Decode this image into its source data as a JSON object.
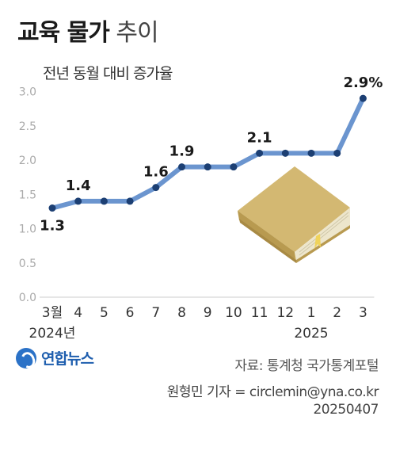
{
  "header": {
    "title_bold": "교육 물가",
    "title_light": "추이",
    "subtitle": "전년 동월 대비 증가율"
  },
  "chart_data": {
    "type": "line",
    "title": "교육 물가 추이",
    "ylabel": "전년 동월 대비 증가율",
    "categories": [
      "3월",
      "4",
      "5",
      "6",
      "7",
      "8",
      "9",
      "10",
      "11",
      "12",
      "1",
      "2",
      "3"
    ],
    "year_labels": [
      {
        "index": 0,
        "text": "2024년"
      },
      {
        "index": 10,
        "text": "2025"
      }
    ],
    "series": [
      {
        "values": [
          1.3,
          1.4,
          1.4,
          1.4,
          1.6,
          1.9,
          1.9,
          1.9,
          2.1,
          2.1,
          2.1,
          2.1,
          2.9
        ]
      }
    ],
    "data_labels": [
      {
        "index": 0,
        "text": "1.3",
        "position": "below"
      },
      {
        "index": 1,
        "text": "1.4",
        "position": "above"
      },
      {
        "index": 4,
        "text": "1.6",
        "position": "above"
      },
      {
        "index": 5,
        "text": "1.9",
        "position": "above"
      },
      {
        "index": 8,
        "text": "2.1",
        "position": "above"
      },
      {
        "index": 12,
        "text": "2.9%",
        "position": "above"
      }
    ],
    "yticks": [
      "0.0",
      "0.5",
      "1.0",
      "1.5",
      "2.0",
      "2.5",
      "3.0"
    ],
    "ylim": [
      0,
      3.0
    ],
    "grid": false,
    "colors": {
      "line": "#6b95cf",
      "marker": "#1c3f73",
      "axis_text": "#aaaaaa",
      "axis_line": "#cccccc"
    }
  },
  "illustration": {
    "name": "book-icon"
  },
  "footer": {
    "logo_text": "연합뉴스",
    "source": "자료: 통계청 국가통계포털",
    "credit_line1": "원형민 기자 = circlemin@yna.co.kr",
    "credit_line2": "20250407"
  }
}
